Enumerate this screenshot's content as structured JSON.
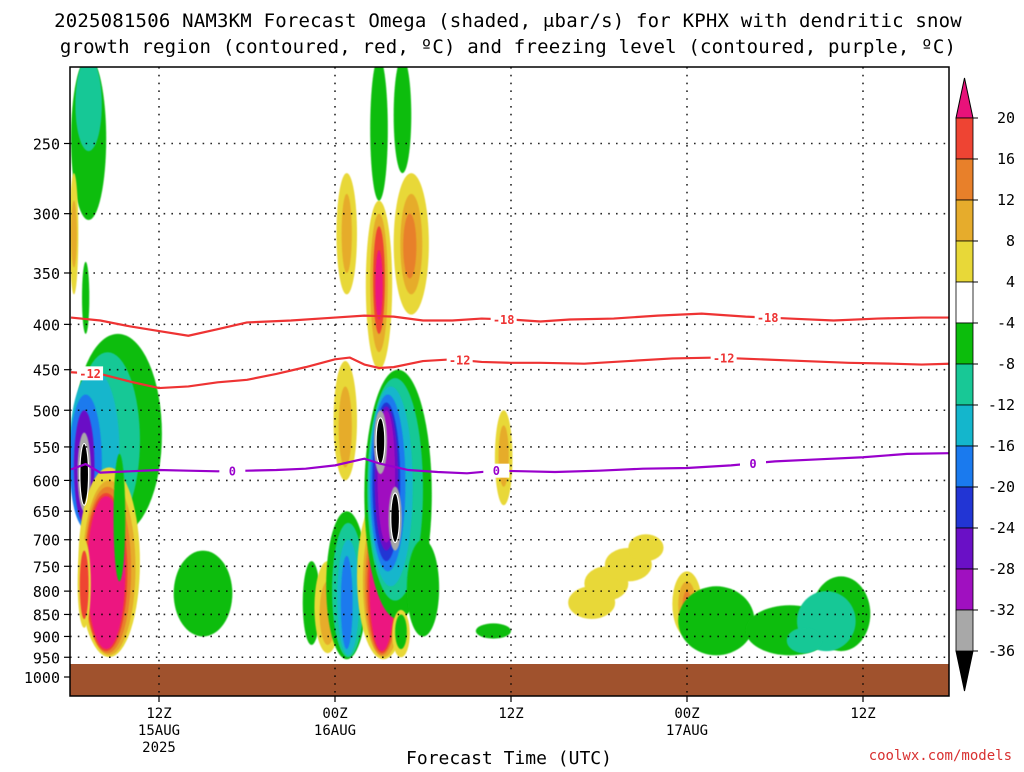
{
  "title": {
    "line1": "2025081506 NAM3KM Forecast Omega (shaded, μbar/s) for KPHX with dendritic snow",
    "line2": "growth region (contoured, red, ºC) and freezing level (contoured, purple, ºC)"
  },
  "x_axis_label": "Forecast Time (UTC)",
  "credit": "coolwx.com/models",
  "colors": {
    "ground": "#a0522d",
    "dgz_contour": "#ee3333",
    "freezing_contour": "#9900cc",
    "grid": "#000000"
  },
  "chart_data": {
    "type": "heatmap",
    "title": "2025081506 NAM3KM Forecast Omega (shaded, μbar/s) for KPHX with dendritic snow growth region (contoured, red, ºC) and freezing level (contoured, purple, ºC)",
    "xlabel": "Forecast Time (UTC)",
    "ylabel": "",
    "x_range_hours": [
      0,
      60
    ],
    "y_range_hPa": [
      200,
      1000
    ],
    "y_scale": "log-pressure (inverted)",
    "y_ticks": [
      250,
      300,
      350,
      400,
      450,
      500,
      550,
      600,
      650,
      700,
      750,
      800,
      850,
      900,
      950,
      1000
    ],
    "x_ticks": [
      {
        "hour": 6,
        "label": "12Z",
        "date": "15AUG",
        "year": "2025"
      },
      {
        "hour": 18,
        "label": "00Z",
        "date": "16AUG",
        "year": ""
      },
      {
        "hour": 30,
        "label": "12Z",
        "date": "",
        "year": ""
      },
      {
        "hour": 42,
        "label": "00Z",
        "date": "17AUG",
        "year": ""
      },
      {
        "hour": 54,
        "label": "12Z",
        "date": "",
        "year": ""
      }
    ],
    "grid": true,
    "colorbar": {
      "labels": [
        "20",
        "16",
        "12",
        "8",
        "4",
        "-4",
        "-8",
        "-12",
        "-16",
        "-20",
        "-24",
        "-28",
        "-32",
        "-36"
      ],
      "colors": [
        "#dd1a50",
        "#ee4433",
        "#e8802a",
        "#e6ac2c",
        "#e8d838",
        "#ffffff",
        "#0cbd0c",
        "#18c896",
        "#14b6cc",
        "#1a7aee",
        "#2235d4",
        "#6a10c6",
        "#a010c0",
        "#a8a8a8",
        "#000000"
      ],
      "top_cap_color": "#e8127a",
      "bottom_cap_color": "#000000"
    },
    "contours": [
      {
        "name": "-18",
        "color": "#ee3333",
        "label_hours": [
          29.5,
          47.5
        ],
        "points": [
          [
            0,
            393
          ],
          [
            2,
            396
          ],
          [
            4,
            402
          ],
          [
            6,
            407
          ],
          [
            8,
            412
          ],
          [
            10,
            405
          ],
          [
            12,
            398
          ],
          [
            15,
            396
          ],
          [
            18,
            393
          ],
          [
            20,
            391
          ],
          [
            22,
            392
          ],
          [
            24,
            396
          ],
          [
            26,
            396
          ],
          [
            28,
            394
          ],
          [
            30,
            395
          ],
          [
            32,
            397
          ],
          [
            34,
            395
          ],
          [
            37,
            394
          ],
          [
            40,
            391
          ],
          [
            43,
            389
          ],
          [
            46,
            392
          ],
          [
            49,
            394
          ],
          [
            52,
            396
          ],
          [
            55,
            394
          ],
          [
            58,
            393
          ],
          [
            60,
            393
          ]
        ]
      },
      {
        "name": "-12",
        "color": "#ee3333",
        "label_hours": [
          1.3,
          26.5,
          44.5
        ],
        "points": [
          [
            0,
            453
          ],
          [
            2,
            455
          ],
          [
            4,
            464
          ],
          [
            6,
            472
          ],
          [
            8,
            470
          ],
          [
            10,
            465
          ],
          [
            12,
            462
          ],
          [
            14,
            455
          ],
          [
            16,
            447
          ],
          [
            18,
            438
          ],
          [
            19,
            436
          ],
          [
            20,
            444
          ],
          [
            21,
            448
          ],
          [
            22,
            447
          ],
          [
            24,
            440
          ],
          [
            26,
            438
          ],
          [
            28,
            441
          ],
          [
            30,
            442
          ],
          [
            32,
            442
          ],
          [
            35,
            443
          ],
          [
            38,
            440
          ],
          [
            41,
            437
          ],
          [
            44,
            436
          ],
          [
            47,
            438
          ],
          [
            50,
            440
          ],
          [
            53,
            442
          ],
          [
            56,
            443
          ],
          [
            58,
            444
          ],
          [
            60,
            443
          ]
        ]
      },
      {
        "name": "0",
        "color": "#9900cc",
        "label_hours": [
          11,
          29,
          46.5
        ],
        "points": [
          [
            0,
            583
          ],
          [
            1,
            575
          ],
          [
            2,
            588
          ],
          [
            4,
            586
          ],
          [
            6,
            584
          ],
          [
            8,
            585
          ],
          [
            10,
            586
          ],
          [
            12,
            585
          ],
          [
            14,
            584
          ],
          [
            16,
            582
          ],
          [
            18,
            577
          ],
          [
            20,
            567
          ],
          [
            21,
            574
          ],
          [
            22,
            579
          ],
          [
            23,
            584
          ],
          [
            25,
            587
          ],
          [
            27,
            589
          ],
          [
            29,
            585
          ],
          [
            31,
            586
          ],
          [
            33,
            587
          ],
          [
            36,
            585
          ],
          [
            39,
            582
          ],
          [
            42,
            581
          ],
          [
            45,
            577
          ],
          [
            48,
            571
          ],
          [
            51,
            568
          ],
          [
            54,
            565
          ],
          [
            57,
            560
          ],
          [
            60,
            559
          ]
        ]
      }
    ],
    "notes": "Shaded omega values plotted as filled regions vs forecast hour and pressure level; ground (below ~960 hPa) shaded brown."
  }
}
